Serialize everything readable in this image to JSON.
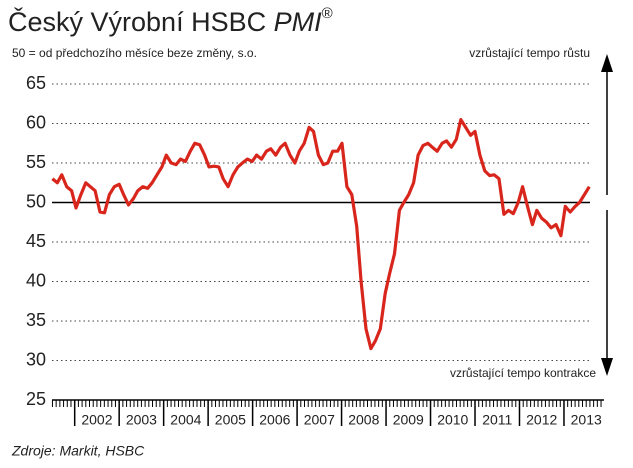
{
  "chart_data": {
    "type": "line",
    "title": "Český Výrobní HSBC",
    "title_em": "PMI",
    "title_sup": "®",
    "subtitle": "50 = od předchozího měsíce beze změny, s.o.",
    "annotations": [
      "vzrůstající tempo růstu",
      "vzrůstající tempo kontrakce"
    ],
    "source": "Zdroje: Markit, HSBC",
    "x": [
      2001.0,
      2001.11,
      2001.21,
      2001.32,
      2001.43,
      2001.53,
      2001.64,
      2001.75,
      2001.85,
      2001.96,
      2002.07,
      2002.17,
      2002.28,
      2002.39,
      2002.5,
      2002.6,
      2002.71,
      2002.82,
      2002.92,
      2003.03,
      2003.14,
      2003.24,
      2003.35,
      2003.46,
      2003.56,
      2003.67,
      2003.78,
      2003.88,
      2003.99,
      2004.1,
      2004.2,
      2004.31,
      2004.42,
      2004.52,
      2004.63,
      2004.74,
      2004.84,
      2004.95,
      2005.06,
      2005.17,
      2005.27,
      2005.38,
      2005.49,
      2005.59,
      2005.7,
      2005.81,
      2005.91,
      2006.02,
      2006.13,
      2006.23,
      2006.34,
      2006.45,
      2006.55,
      2006.66,
      2006.77,
      2006.87,
      2006.98,
      2007.09,
      2007.19,
      2007.3,
      2007.41,
      2007.51,
      2007.62,
      2007.73,
      2007.84,
      2007.94,
      2008.05,
      2008.16,
      2008.26,
      2008.37,
      2008.48,
      2008.58,
      2008.69,
      2008.8,
      2008.9,
      2009.01,
      2009.12,
      2009.22,
      2009.33,
      2009.44,
      2009.54,
      2009.65,
      2009.76,
      2009.86,
      2009.97,
      2010.08,
      2010.18,
      2010.29,
      2010.4,
      2010.5,
      2010.61,
      2010.72,
      2010.83,
      2010.93,
      2011.04,
      2011.15,
      2011.25,
      2011.36,
      2011.47,
      2011.57,
      2011.68,
      2011.79,
      2011.89,
      2012.0,
      2012.11,
      2012.21,
      2012.32,
      2012.43,
      2012.53,
      2012.64,
      2012.75,
      2012.85,
      2012.96,
      2013.07
    ],
    "series": [
      {
        "name": "PMI",
        "color": "#d9261c",
        "values": [
          53,
          52.5,
          53.5,
          52,
          51.5,
          49.3,
          51,
          52.5,
          52,
          51.5,
          48.8,
          48.7,
          51,
          52,
          52.3,
          51,
          49.7,
          50.5,
          51.5,
          52,
          51.8,
          52.5,
          53.5,
          54.5,
          56,
          55,
          54.8,
          55.5,
          55.2,
          56.5,
          57.5,
          57.3,
          56,
          54.5,
          54.6,
          54.5,
          53,
          52,
          53.5,
          54.5,
          55,
          55.5,
          55.2,
          56,
          55.5,
          56.5,
          56.8,
          56,
          57,
          57.5,
          56,
          55,
          56.5,
          57.5,
          59.5,
          59,
          56,
          54.8,
          55,
          56.5,
          56.5,
          57.5,
          52,
          51,
          47,
          40,
          34,
          31.5,
          32.5,
          34,
          38.5,
          41,
          43.5,
          49,
          50,
          51,
          52.5,
          56,
          57.2,
          57.5,
          57,
          56.5,
          57.5,
          57.8,
          57,
          58,
          60.5,
          59.5,
          58.5,
          59,
          56,
          54,
          53.4,
          53.5,
          53,
          48.5,
          49,
          48.6,
          50,
          52,
          49.5,
          47.2,
          49,
          48,
          47.5,
          46.8,
          47.2,
          45.8,
          49.5,
          48.8,
          49.5,
          50,
          51,
          52
        ]
      }
    ],
    "xlim": [
      2000.99,
      2013.4
    ],
    "xticks": [
      2002,
      2003,
      2004,
      2005,
      2006,
      2007,
      2008,
      2009,
      2010,
      2011,
      2012,
      2013
    ],
    "ylim": [
      25,
      65
    ],
    "yticks": [
      25,
      30,
      35,
      40,
      45,
      50,
      55,
      60,
      65
    ],
    "hline": 50,
    "grid": true
  }
}
